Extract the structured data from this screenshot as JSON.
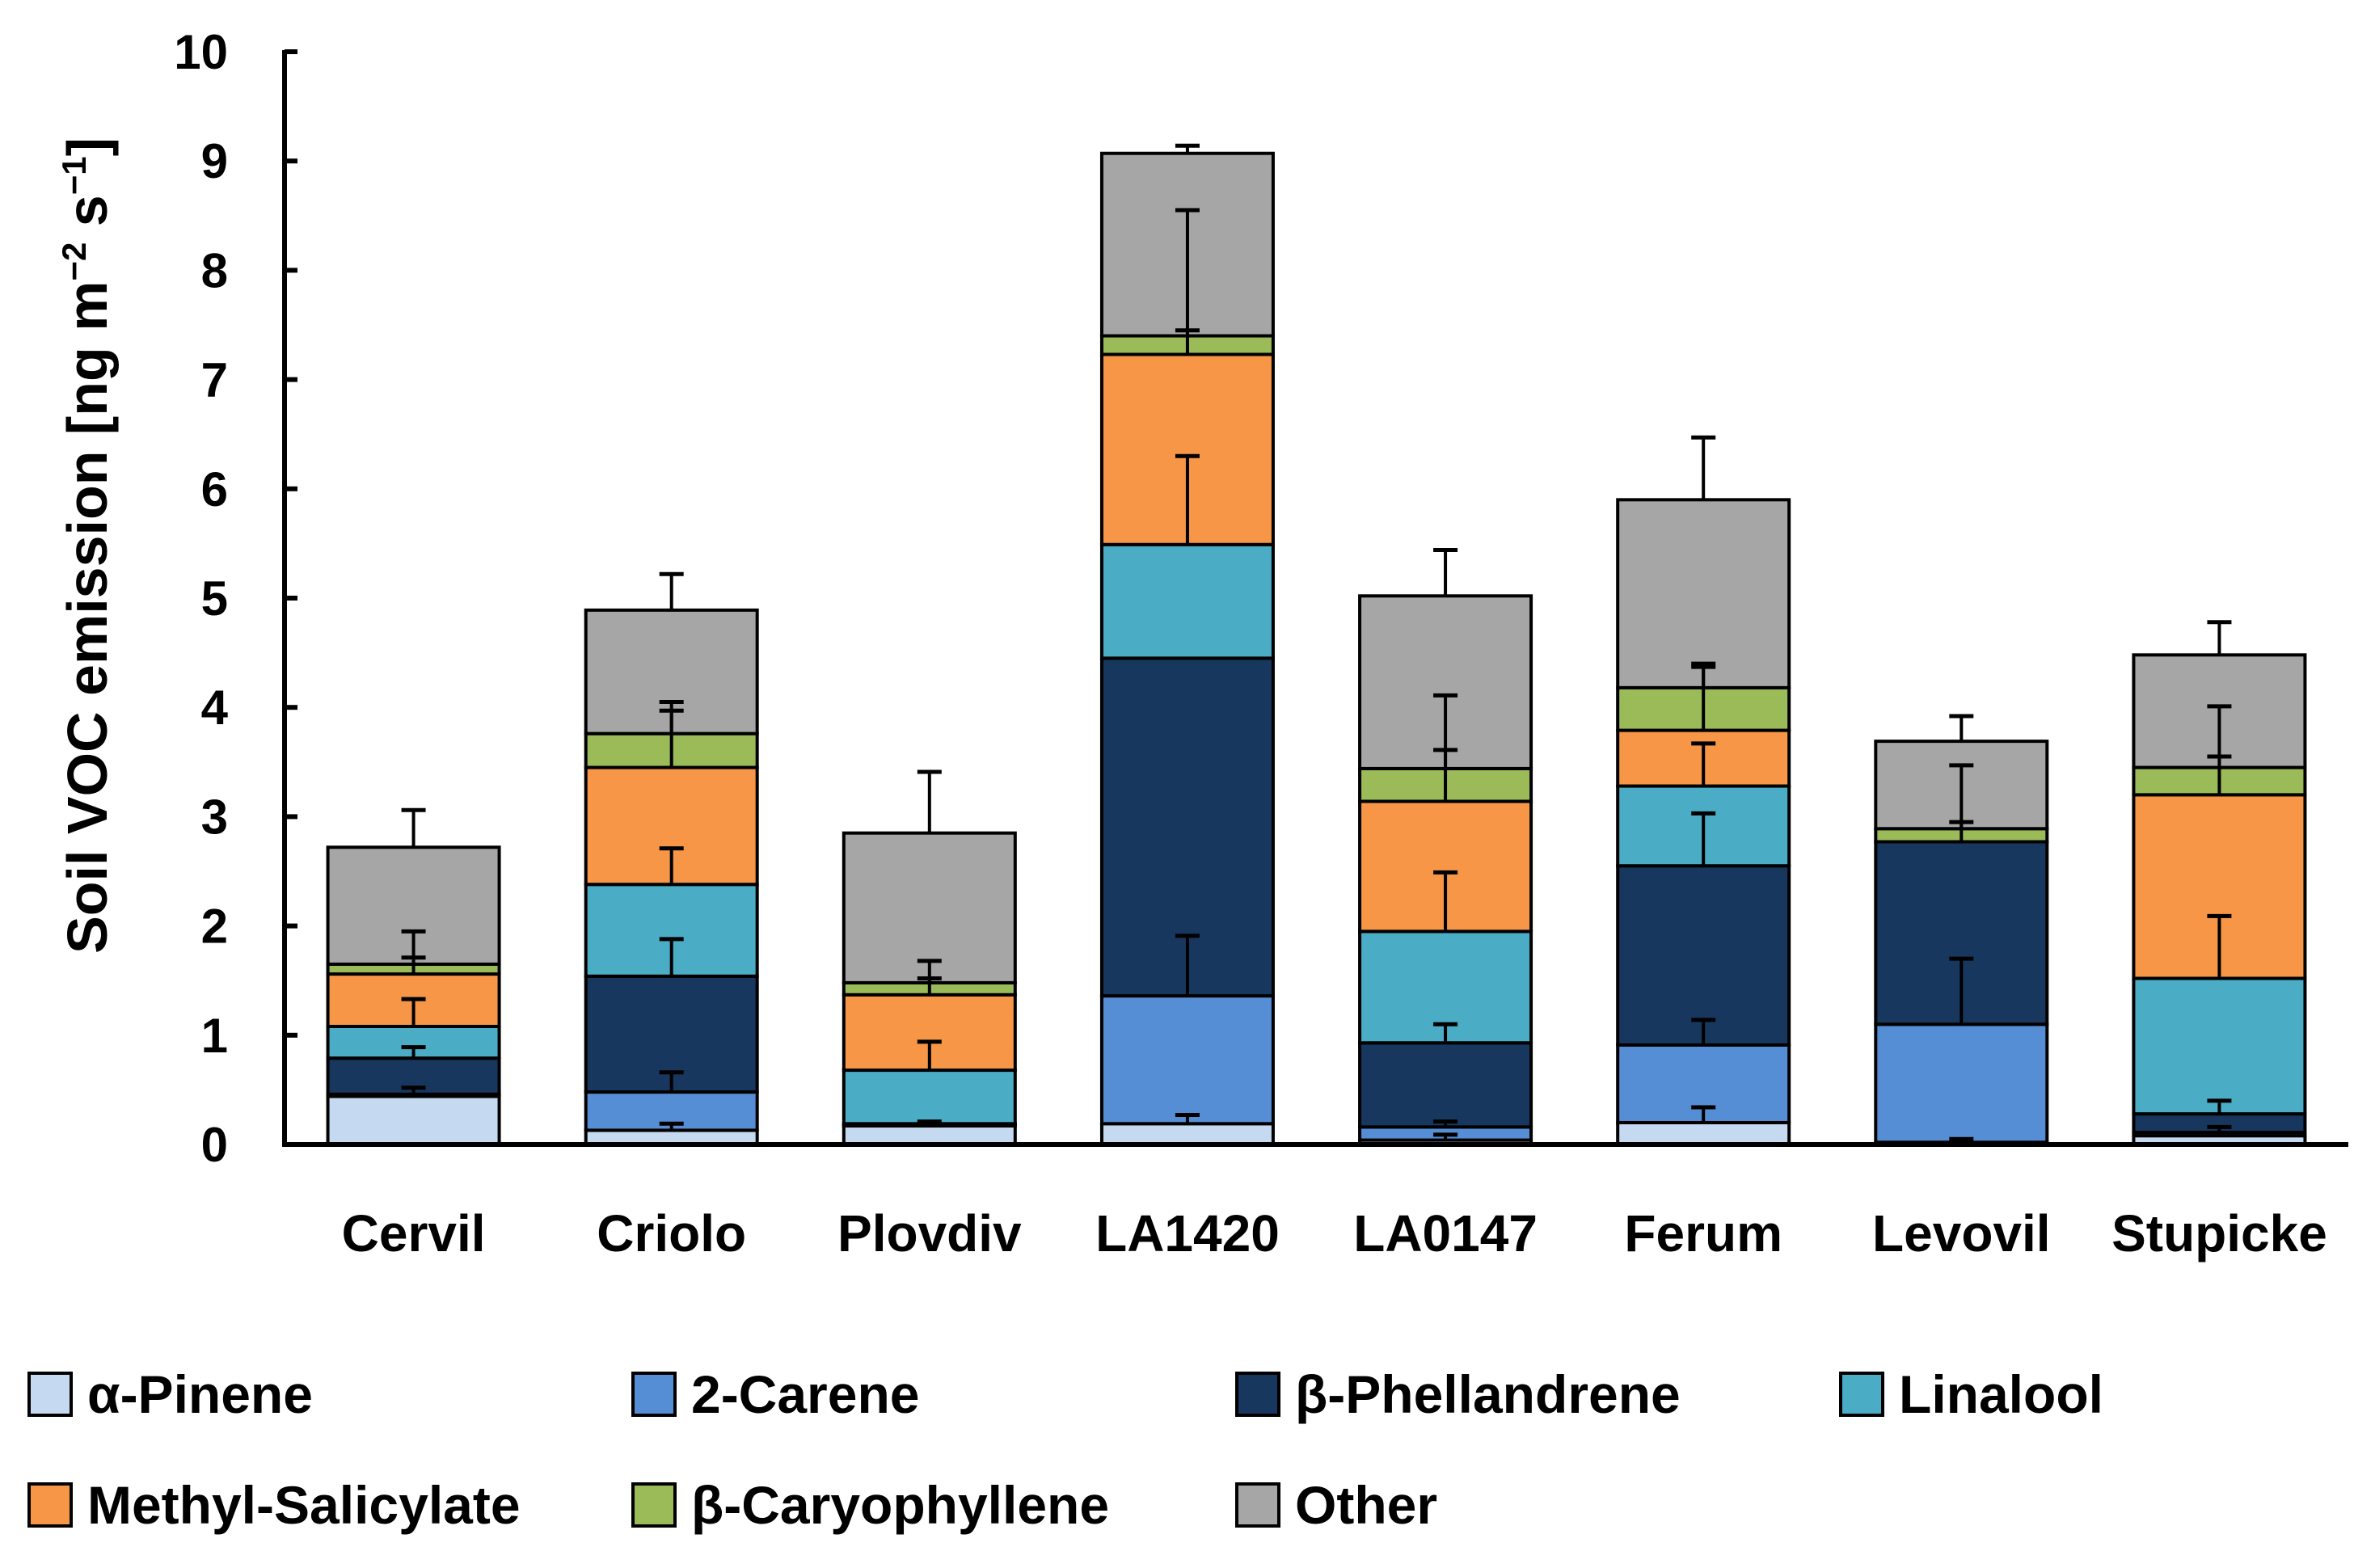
{
  "chart_data": {
    "type": "bar",
    "stacked": true,
    "title": "",
    "xlabel": "",
    "ylabel": {
      "main": "Soil VOC emission [ng m",
      "sup1": "−2",
      "mid": " s",
      "sup2": "−1",
      "end": "]"
    },
    "ylim": [
      0,
      10
    ],
    "yticks": [
      "0",
      "1",
      "2",
      "3",
      "4",
      "5",
      "6",
      "7",
      "8",
      "9",
      "10"
    ],
    "categories": [
      "Cervil",
      "Criolo",
      "Plovdiv",
      "LA1420",
      "LA0147",
      "Ferum",
      "Levovil",
      "Stupicke"
    ],
    "legend_position": "bottom",
    "series": [
      {
        "name": "α-Pinene",
        "color": "#C5D9F1",
        "values": [
          0.44,
          0.13,
          0.17,
          0.19,
          0.04,
          0.2,
          0.02,
          0.08
        ],
        "errors": [
          0.08,
          0.06,
          0.04,
          0.08,
          0.05,
          0.14,
          0.03,
          0.08
        ]
      },
      {
        "name": "2-Carene",
        "color": "#558ED5",
        "values": [
          0.02,
          0.35,
          0.01,
          1.17,
          0.12,
          0.71,
          1.08,
          0.03
        ],
        "errors": [
          0.0,
          0.18,
          0.0,
          0.55,
          0.05,
          0.23,
          0.6,
          0.0
        ]
      },
      {
        "name": "β-Phellandrene",
        "color": "#17375E",
        "values": [
          0.33,
          1.06,
          0.01,
          3.09,
          0.77,
          1.64,
          1.67,
          0.17
        ],
        "errors": [
          0.1,
          0.34,
          0.0,
          0.0,
          0.17,
          0.48,
          0.18,
          0.12
        ]
      },
      {
        "name": "Linalool",
        "color": "#4BACC6",
        "values": [
          0.29,
          0.84,
          0.49,
          1.04,
          1.02,
          0.73,
          0.0,
          1.24
        ],
        "errors": [
          0.25,
          0.33,
          0.26,
          0.81,
          0.54,
          0.39,
          0.0,
          0.57
        ]
      },
      {
        "name": "Methyl-Salicylate",
        "color": "#F79646",
        "values": [
          0.48,
          1.07,
          0.69,
          1.74,
          1.19,
          0.51,
          0.0,
          1.68
        ],
        "errors": [
          0.15,
          0.52,
          0.15,
          0.22,
          0.47,
          0.58,
          0.0,
          0.35
        ]
      },
      {
        "name": "β-Caryophyllene",
        "color": "#9BBB59",
        "values": [
          0.09,
          0.31,
          0.11,
          0.17,
          0.3,
          0.39,
          0.12,
          0.25
        ],
        "errors": [
          0.3,
          0.29,
          0.2,
          1.15,
          0.67,
          0.22,
          0.58,
          0.56
        ]
      },
      {
        "name": "Other",
        "color": "#A6A6A6",
        "values": [
          1.07,
          1.13,
          1.37,
          1.67,
          1.58,
          1.72,
          0.8,
          1.03
        ],
        "errors": [
          0.34,
          0.33,
          0.56,
          0.07,
          0.42,
          0.57,
          0.23,
          0.3
        ]
      }
    ]
  }
}
